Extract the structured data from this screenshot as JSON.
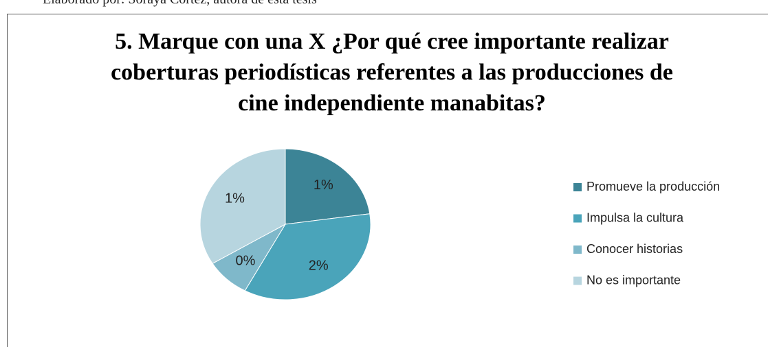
{
  "source": "Elaborado por: Soraya Cortez, autora de esta tesis",
  "chart_data": {
    "type": "pie",
    "title": "5. Marque con una X ¿Por qué cree importante realizar coberturas periodísticas referentes a las producciones de cine independiente manabitas?",
    "categories": [
      "Promueve la producción",
      "Impulsa la cultura",
      "Conocer historias",
      "No es importante"
    ],
    "values": [
      1.0,
      1.54,
      0.37,
      1.48
    ],
    "value_labels": [
      "1%",
      "2%",
      "0%",
      "1%"
    ],
    "colors": [
      "#3c8496",
      "#4aa4ba",
      "#7fb8ca",
      "#b7d5df"
    ],
    "legend": "right"
  }
}
